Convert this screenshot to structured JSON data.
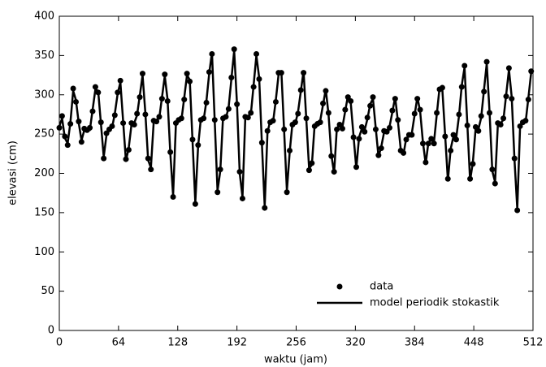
{
  "chart_data": {
    "type": "line",
    "x_label": "waktu (jam)",
    "y_label": "elevasi (cm)",
    "xlim": [
      0,
      512
    ],
    "xticks": [
      0,
      64,
      128,
      192,
      256,
      320,
      384,
      448,
      512
    ],
    "ylim": [
      0,
      400
    ],
    "yticks": [
      0,
      50,
      100,
      150,
      200,
      250,
      300,
      350,
      400
    ],
    "legend": "lower right",
    "x": [
      0,
      3,
      6,
      9,
      12,
      15,
      18,
      21,
      24,
      27,
      30,
      33,
      36,
      39,
      42,
      45,
      48,
      51,
      54,
      57,
      60,
      63,
      66,
      69,
      72,
      75,
      78,
      81,
      84,
      87,
      90,
      93,
      96,
      99,
      102,
      105,
      108,
      111,
      114,
      117,
      120,
      123,
      126,
      129,
      132,
      135,
      138,
      141,
      144,
      147,
      150,
      153,
      156,
      159,
      162,
      165,
      168,
      171,
      174,
      177,
      180,
      183,
      186,
      189,
      192,
      195,
      198,
      201,
      204,
      207,
      210,
      213,
      216,
      219,
      222,
      225,
      228,
      231,
      234,
      237,
      240,
      243,
      246,
      249,
      252,
      255,
      258,
      261,
      264,
      267,
      270,
      273,
      276,
      279,
      282,
      285,
      288,
      291,
      294,
      297,
      300,
      303,
      306,
      309,
      312,
      315,
      318,
      321,
      324,
      327,
      330,
      333,
      336,
      339,
      342,
      345,
      348,
      351,
      354,
      357,
      360,
      363,
      366,
      369,
      372,
      375,
      378,
      381,
      384,
      387,
      390,
      393,
      396,
      399,
      402,
      405,
      408,
      411,
      414,
      417,
      420,
      423,
      426,
      429,
      432,
      435,
      438,
      441,
      444,
      447,
      450,
      453,
      456,
      459,
      462,
      465,
      468,
      471,
      474,
      477,
      480,
      483,
      486,
      489,
      492,
      495,
      498,
      501,
      504,
      507,
      510
    ],
    "series": [
      {
        "name": "data",
        "color": "#000000",
        "mode": "markers",
        "values": [
          258,
          273,
          247,
          236,
          263,
          308,
          291,
          266,
          240,
          257,
          255,
          258,
          279,
          310,
          303,
          265,
          219,
          251,
          256,
          260,
          274,
          303,
          318,
          264,
          218,
          230,
          264,
          262,
          276,
          297,
          327,
          275,
          219,
          205,
          267,
          266,
          272,
          295,
          326,
          292,
          227,
          170,
          264,
          268,
          270,
          294,
          327,
          317,
          243,
          161,
          236,
          268,
          270,
          290,
          329,
          352,
          268,
          176,
          205,
          270,
          272,
          282,
          322,
          358,
          288,
          202,
          168,
          272,
          271,
          277,
          310,
          352,
          320,
          239,
          156,
          254,
          265,
          267,
          291,
          328,
          328,
          256,
          176,
          229,
          262,
          265,
          276,
          306,
          328,
          270,
          204,
          213,
          260,
          263,
          265,
          289,
          305,
          277,
          222,
          202,
          256,
          262,
          257,
          281,
          297,
          292,
          246,
          208,
          244,
          259,
          253,
          271,
          286,
          297,
          256,
          223,
          232,
          254,
          253,
          258,
          280,
          295,
          268,
          229,
          226,
          243,
          249,
          249,
          276,
          295,
          281,
          238,
          214,
          238,
          244,
          238,
          277,
          307,
          309,
          247,
          193,
          229,
          249,
          243,
          275,
          310,
          337,
          261,
          193,
          212,
          259,
          254,
          273,
          304,
          342,
          277,
          205,
          187,
          264,
          262,
          270,
          298,
          334,
          295,
          219,
          153,
          260,
          265,
          267,
          294,
          330
        ]
      },
      {
        "name": "model periodik stokastik",
        "color": "#000000",
        "mode": "line",
        "values": [
          260,
          270,
          245,
          238,
          265,
          305,
          293,
          264,
          242,
          255,
          257,
          255,
          281,
          307,
          305,
          263,
          221,
          249,
          258,
          258,
          276,
          301,
          316,
          266,
          216,
          232,
          262,
          264,
          274,
          299,
          325,
          277,
          217,
          207,
          265,
          268,
          270,
          297,
          324,
          294,
          225,
          172,
          262,
          270,
          268,
          296,
          325,
          319,
          241,
          163,
          234,
          270,
          268,
          292,
          327,
          354,
          266,
          178,
          203,
          272,
          270,
          284,
          320,
          356,
          290,
          200,
          170,
          270,
          273,
          275,
          312,
          350,
          322,
          237,
          158,
          252,
          267,
          265,
          293,
          326,
          330,
          254,
          178,
          227,
          264,
          263,
          278,
          304,
          330,
          268,
          206,
          211,
          262,
          261,
          267,
          287,
          307,
          275,
          224,
          200,
          258,
          260,
          259,
          279,
          299,
          290,
          248,
          206,
          246,
          257,
          255,
          269,
          288,
          295,
          258,
          221,
          234,
          252,
          251,
          260,
          278,
          297,
          266,
          231,
          224,
          245,
          247,
          251,
          274,
          297,
          279,
          240,
          212,
          240,
          242,
          240,
          275,
          309,
          307,
          249,
          191,
          231,
          247,
          245,
          273,
          312,
          335,
          263,
          191,
          214,
          257,
          256,
          271,
          306,
          340,
          279,
          203,
          189,
          262,
          264,
          268,
          300,
          332,
          297,
          217,
          155,
          258,
          267,
          265,
          296,
          328
        ]
      }
    ]
  }
}
